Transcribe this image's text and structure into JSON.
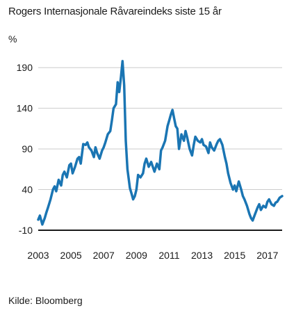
{
  "chart_data": {
    "type": "line",
    "title": "Rogers Internasjonale Råvareindeks siste 15 år",
    "ylabel": "%",
    "xlabel": "",
    "source": "Kilde: Bloomberg",
    "xlim": [
      2003.0,
      2017.9
    ],
    "ylim": [
      -10,
      215
    ],
    "yticks": [
      -10,
      40,
      90,
      140,
      190
    ],
    "xticks": [
      2003,
      2005,
      2007,
      2009,
      2011,
      2013,
      2015,
      2017
    ],
    "grid": "horizontal",
    "series_color": "#1a75b3",
    "series": [
      {
        "x": [
          2003.0,
          2003.1,
          2003.25,
          2003.4,
          2003.5,
          2003.6,
          2003.75,
          2003.9,
          2004.0,
          2004.1,
          2004.25,
          2004.4,
          2004.5,
          2004.6,
          2004.75,
          2004.9,
          2005.0,
          2005.1,
          2005.25,
          2005.4,
          2005.5,
          2005.6,
          2005.75,
          2005.9,
          2006.0,
          2006.1,
          2006.25,
          2006.4,
          2006.5,
          2006.6,
          2006.75,
          2006.9,
          2007.0,
          2007.1,
          2007.25,
          2007.4,
          2007.5,
          2007.6,
          2007.75,
          2007.85,
          2007.95,
          2008.05,
          2008.15,
          2008.25,
          2008.35,
          2008.45,
          2008.55,
          2008.6,
          2008.7,
          2008.8,
          2008.9,
          2009.0,
          2009.1,
          2009.25,
          2009.4,
          2009.5,
          2009.6,
          2009.75,
          2009.9,
          2010.0,
          2010.1,
          2010.25,
          2010.4,
          2010.5,
          2010.6,
          2010.75,
          2010.9,
          2011.0,
          2011.1,
          2011.2,
          2011.3,
          2011.4,
          2011.5,
          2011.6,
          2011.75,
          2011.9,
          2012.0,
          2012.1,
          2012.25,
          2012.4,
          2012.5,
          2012.6,
          2012.75,
          2012.9,
          2013.0,
          2013.1,
          2013.25,
          2013.4,
          2013.5,
          2013.6,
          2013.75,
          2013.9,
          2014.0,
          2014.1,
          2014.25,
          2014.4,
          2014.5,
          2014.6,
          2014.75,
          2014.9,
          2015.0,
          2015.1,
          2015.25,
          2015.4,
          2015.5,
          2015.6,
          2015.75,
          2015.9,
          2016.0,
          2016.1,
          2016.25,
          2016.4,
          2016.5,
          2016.6,
          2016.75,
          2016.9,
          2017.0,
          2017.1,
          2017.25,
          2017.4,
          2017.5,
          2017.6,
          2017.75,
          2017.9
        ],
        "values": [
          3,
          8,
          -3,
          5,
          12,
          18,
          28,
          40,
          44,
          38,
          52,
          45,
          58,
          62,
          55,
          70,
          72,
          60,
          68,
          78,
          80,
          72,
          96,
          95,
          98,
          92,
          88,
          80,
          92,
          85,
          78,
          88,
          92,
          98,
          108,
          112,
          125,
          140,
          145,
          172,
          160,
          178,
          198,
          168,
          100,
          65,
          50,
          42,
          35,
          28,
          32,
          40,
          58,
          55,
          60,
          72,
          78,
          68,
          74,
          68,
          62,
          72,
          65,
          88,
          92,
          100,
          118,
          125,
          132,
          138,
          128,
          118,
          115,
          90,
          108,
          100,
          112,
          104,
          90,
          82,
          95,
          105,
          100,
          98,
          102,
          95,
          93,
          85,
          98,
          92,
          88,
          96,
          100,
          102,
          95,
          80,
          72,
          60,
          48,
          40,
          45,
          38,
          50,
          40,
          32,
          28,
          20,
          10,
          5,
          2,
          10,
          18,
          22,
          15,
          20,
          18,
          25,
          28,
          22,
          20,
          24,
          25,
          30,
          32
        ]
      }
    ]
  }
}
